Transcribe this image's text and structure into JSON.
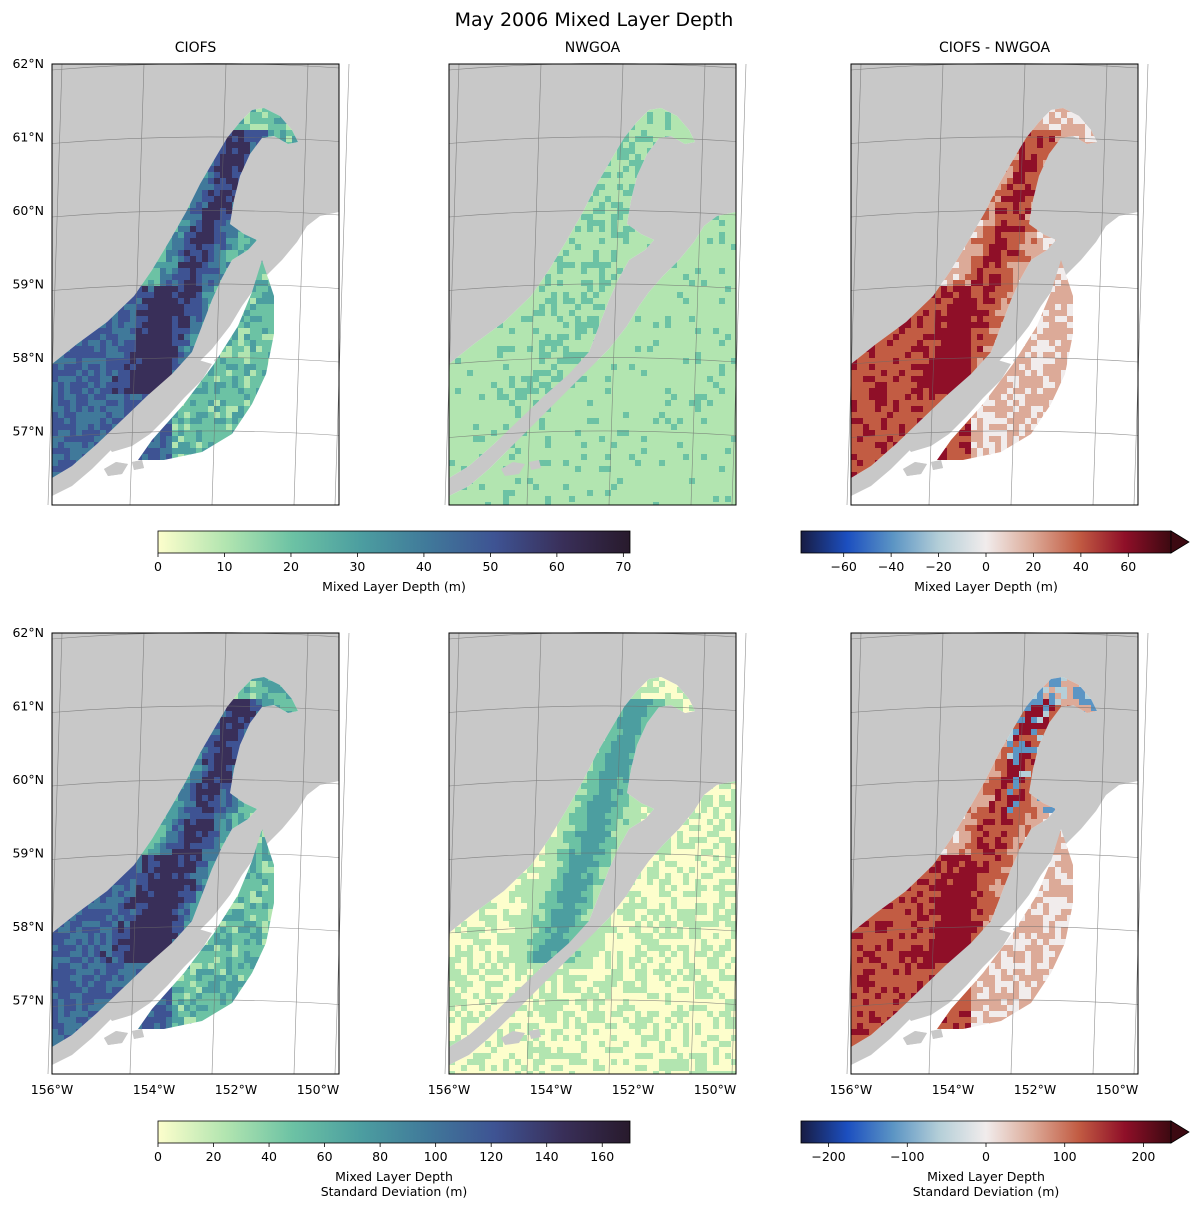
{
  "chart_data": {
    "type": "heatmap",
    "title": "May 2006 Mixed Layer Depth",
    "map_extent": {
      "lon": [
        -156,
        -149
      ],
      "lat": [
        56,
        62
      ]
    },
    "lat_ticks": [
      {
        "value": 62,
        "label": "62°N"
      },
      {
        "value": 61,
        "label": "61°N"
      },
      {
        "value": 60,
        "label": "60°N"
      },
      {
        "value": 59,
        "label": "59°N"
      },
      {
        "value": 58,
        "label": "58°N"
      },
      {
        "value": 57,
        "label": "57°N"
      }
    ],
    "lon_ticks": [
      {
        "value": -156,
        "label": "156°W"
      },
      {
        "value": -154,
        "label": "154°W"
      },
      {
        "value": -152,
        "label": "152°W"
      },
      {
        "value": -150,
        "label": "150°W"
      }
    ],
    "column_titles": [
      "CIOFS",
      "NWGOA",
      "CIOFS - NWGOA"
    ],
    "panels": [
      {
        "row": "mean",
        "column": "CIOFS",
        "colormap": "deep",
        "coverage": "regional"
      },
      {
        "row": "mean",
        "column": "NWGOA",
        "colormap": "deep",
        "coverage": "full"
      },
      {
        "row": "mean",
        "column": "CIOFS - NWGOA",
        "colormap": "balance",
        "coverage": "regional"
      },
      {
        "row": "std",
        "column": "CIOFS",
        "colormap": "deep",
        "coverage": "regional"
      },
      {
        "row": "std",
        "column": "NWGOA",
        "colormap": "deep",
        "coverage": "full"
      },
      {
        "row": "std",
        "column": "CIOFS - NWGOA",
        "colormap": "balance",
        "coverage": "regional"
      }
    ],
    "colorbars": [
      {
        "id": "mean_seq",
        "label_lines": [
          "Mixed Layer Depth (m)"
        ],
        "range": [
          0,
          71
        ],
        "ticks": [
          0,
          10,
          20,
          30,
          40,
          50,
          60,
          70
        ],
        "tick_labels": [
          "0",
          "10",
          "20",
          "30",
          "40",
          "50",
          "60",
          "70"
        ],
        "colormap": "deep",
        "extend": "neither"
      },
      {
        "id": "mean_div",
        "label_lines": [
          "Mixed Layer Depth (m)"
        ],
        "range": [
          -78,
          78
        ],
        "ticks": [
          -60,
          -40,
          -20,
          0,
          20,
          40,
          60
        ],
        "tick_labels": [
          "−60",
          "−40",
          "−20",
          "0",
          "20",
          "40",
          "60"
        ],
        "colormap": "balance",
        "extend": "max"
      },
      {
        "id": "std_seq",
        "label_lines": [
          "Mixed Layer Depth",
          "Standard Deviation (m)"
        ],
        "range": [
          0,
          170
        ],
        "ticks": [
          0,
          20,
          40,
          60,
          80,
          100,
          120,
          140,
          160
        ],
        "tick_labels": [
          "0",
          "20",
          "40",
          "60",
          "80",
          "100",
          "120",
          "140",
          "160"
        ],
        "colormap": "deep",
        "extend": "neither"
      },
      {
        "id": "std_div",
        "label_lines": [
          "Mixed Layer Depth",
          "Standard Deviation (m)"
        ],
        "range": [
          -235,
          235
        ],
        "ticks": [
          -200,
          -100,
          0,
          100,
          200
        ],
        "tick_labels": [
          "−200",
          "−100",
          "0",
          "100",
          "200"
        ],
        "colormap": "balance",
        "extend": "max"
      }
    ]
  },
  "colors": {
    "land": "#c8c8c8",
    "grid": "#6b6b6b",
    "deep": [
      "#fdfecc",
      "#b2e5b0",
      "#6cc2a4",
      "#4c9ea0",
      "#40799a",
      "#3e5393",
      "#392f59",
      "#281a2c"
    ],
    "balance": [
      "#181c43",
      "#1c4fc0",
      "#5c95c4",
      "#b5cfd8",
      "#f1ecec",
      "#dcaa98",
      "#c25c43",
      "#8f0f28",
      "#3c0911"
    ]
  }
}
